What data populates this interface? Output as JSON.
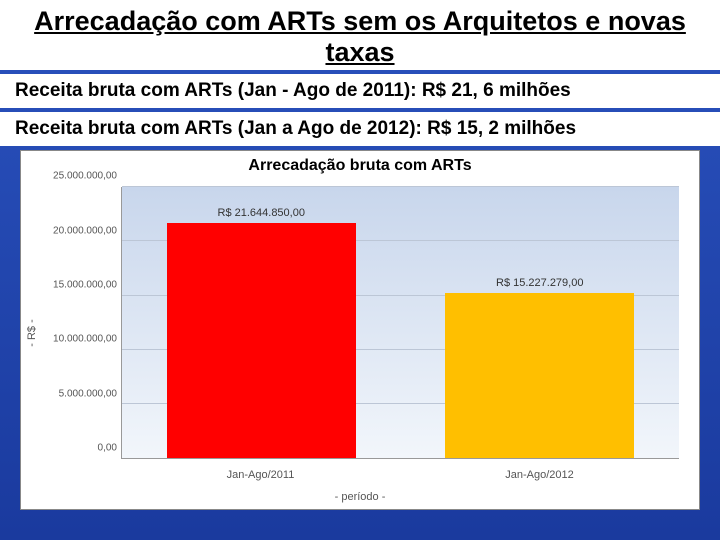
{
  "header": {
    "title": "Arrecadação com ARTs sem os Arquitetos e novas taxas"
  },
  "lines": {
    "l1": "Receita bruta com ARTs (Jan - Ago de 2011): R$ 21, 6 milhões",
    "l2": "Receita bruta com ARTs (Jan a Ago de 2012): R$ 15, 2 milhões"
  },
  "chart": {
    "type": "bar",
    "title": "Arrecadação bruta com ARTs",
    "title_color": "#000000",
    "title_fontsize": 16,
    "ylabel": "- R$ -",
    "xlabel": "- período -",
    "label_fontsize": 11,
    "ylim": [
      0,
      25000000
    ],
    "ytick_step": 5000000,
    "yticks": [
      {
        "v": 0,
        "label": "0,00"
      },
      {
        "v": 5000000,
        "label": "5.000.000,00"
      },
      {
        "v": 10000000,
        "label": "10.000.000,00"
      },
      {
        "v": 15000000,
        "label": "15.000.000,00"
      },
      {
        "v": 20000000,
        "label": "20.000.000,00"
      },
      {
        "v": 25000000,
        "label": "25.000.000,00"
      }
    ],
    "categories": [
      "Jan-Ago/2011",
      "Jan-Ago/2012"
    ],
    "values": [
      21644850,
      15227279
    ],
    "value_labels": [
      "R$ 21.644.850,00",
      "R$ 15.227.279,00"
    ],
    "bar_colors": [
      "#ff0000",
      "#ffbf00"
    ],
    "bar_width": 0.34,
    "background_gradient": [
      "#c8d6ec",
      "#f2f6fb"
    ],
    "grid_color": "#bcc6d6",
    "axis_color": "#999999",
    "tick_fontsize": 10,
    "tick_color": "#555555",
    "card_bg": "#ffffff",
    "card_border": "#888888",
    "slide_bg_gradient": [
      "#2a52be",
      "#1a3a9e"
    ]
  }
}
